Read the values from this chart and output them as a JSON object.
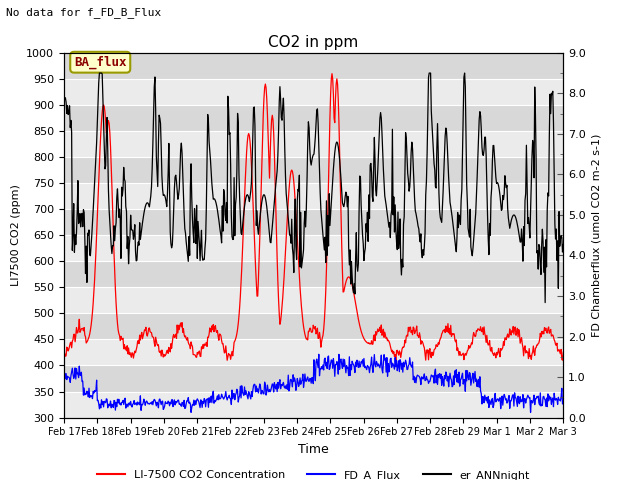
{
  "title": "CO2 in ppm",
  "top_left_text": "No data for f_FD_B_Flux",
  "ba_flux_label": "BA_flux",
  "ylabel_left": "LI7500 CO2 (ppm)",
  "ylabel_right": "FD Chamberflux (umol CO2 m-2 s-1)",
  "xlabel": "Time",
  "ylim_left": [
    300,
    1000
  ],
  "ylim_right": [
    0.0,
    9.0
  ],
  "xtick_labels": [
    "Feb 17",
    "Feb 18",
    "Feb 19",
    "Feb 20",
    "Feb 21",
    "Feb 22",
    "Feb 23",
    "Feb 24",
    "Feb 25",
    "Feb 26",
    "Feb 27",
    "Feb 28",
    "Feb 29",
    "Mar 1",
    "Mar 2",
    "Mar 3"
  ],
  "legend_entries": [
    "LI-7500 CO2 Concentration",
    "FD_A_Flux",
    "er_ANNnight"
  ],
  "color_red": "#FF0000",
  "color_blue": "#0000FF",
  "color_black": "#000000",
  "ba_flux_box_color": "#FFFFCC",
  "ba_flux_border_color": "#999900",
  "plot_bg_light": "#F0F0F0",
  "plot_bg_dark": "#D8D8D8",
  "fig_bg": "#FFFFFF",
  "right_tick_color": "#555555"
}
